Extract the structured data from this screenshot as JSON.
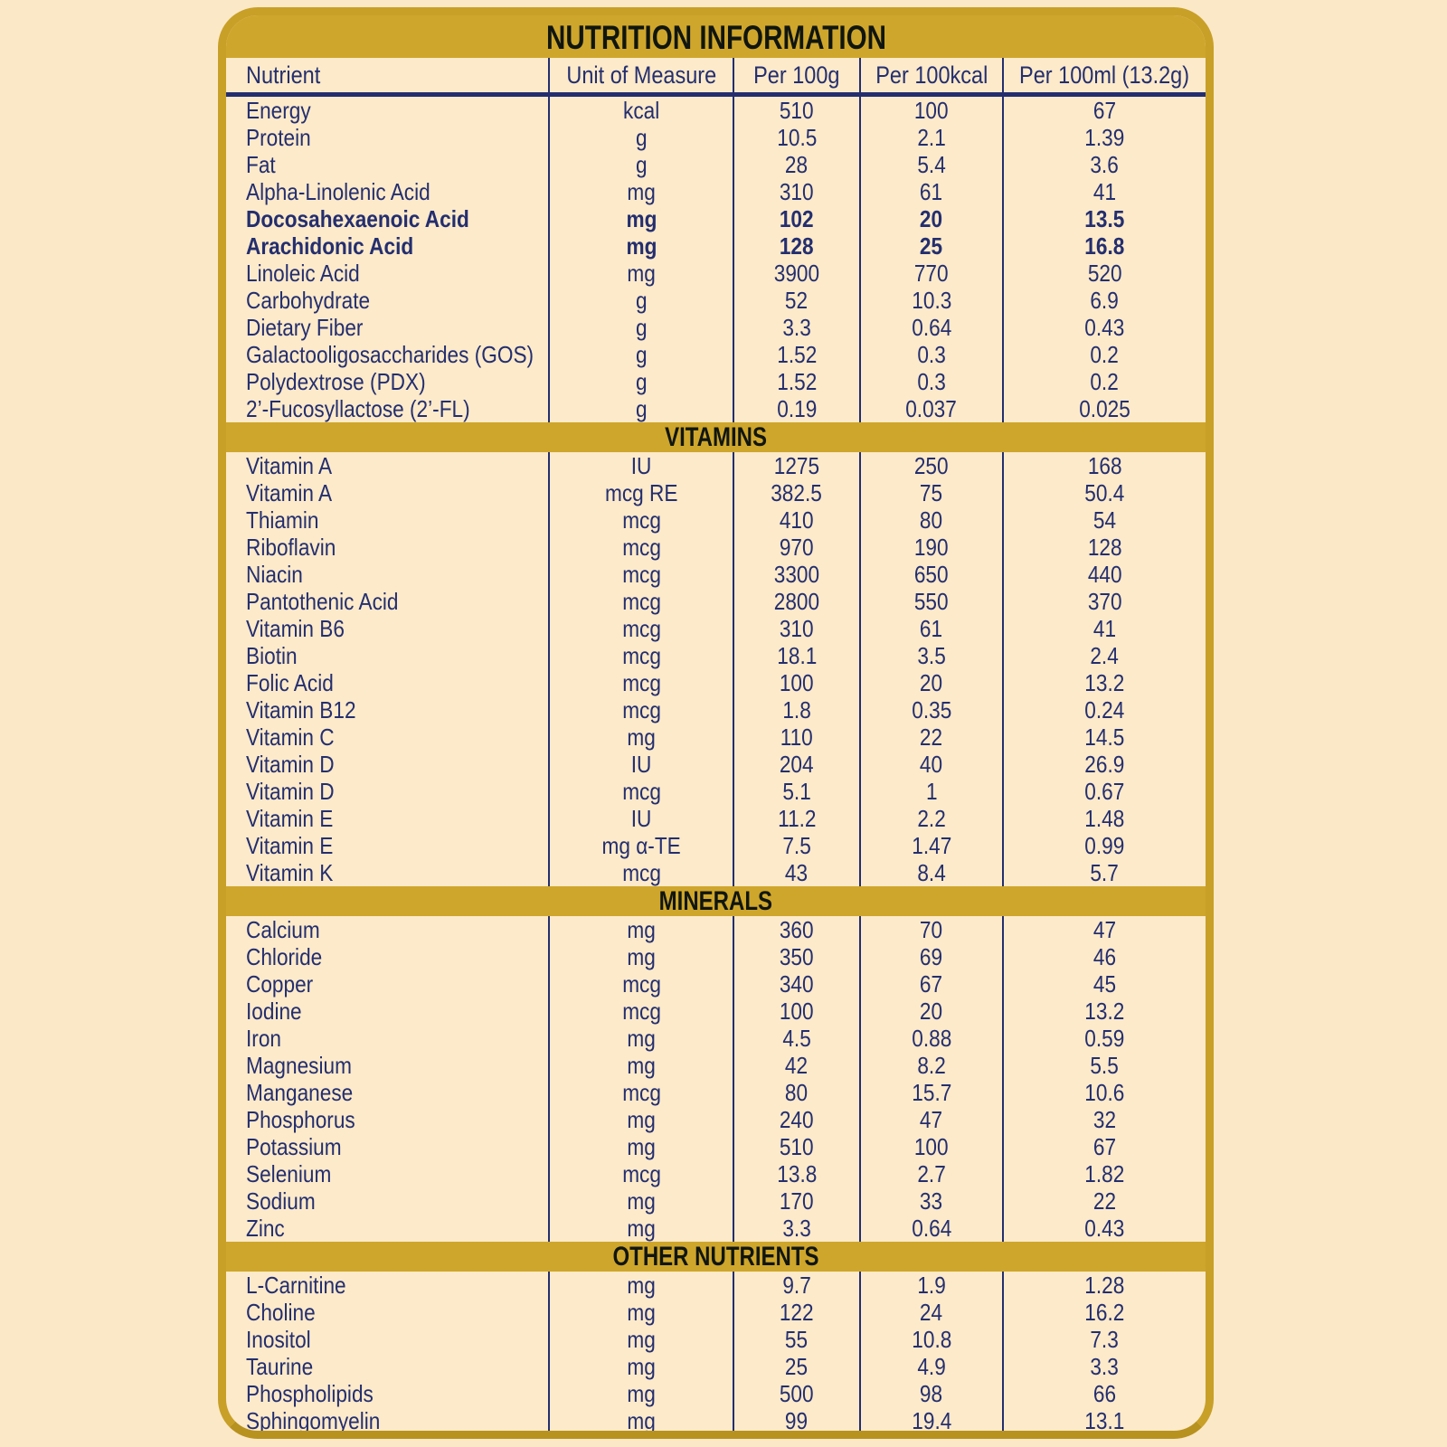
{
  "title": "NUTRITION INFORMATION",
  "columns": [
    "Nutrient",
    "Unit of Measure",
    "Per 100g",
    "Per 100kcal",
    "Per 100ml (13.2g)"
  ],
  "colors": {
    "gold_band": "#CFA62C",
    "gold_border": "#C8A028",
    "cream_background": "#FBE8C7",
    "card_background": "#FCEACA",
    "navy_text": "#242E6F",
    "heading_text": "#10160F"
  },
  "sections": [
    {
      "header": null,
      "rows": [
        {
          "nutrient": "Energy",
          "unit": "kcal",
          "per_100g": "510",
          "per_100kcal": "100",
          "per_100ml": "67",
          "bold": false
        },
        {
          "nutrient": "Protein",
          "unit": "g",
          "per_100g": "10.5",
          "per_100kcal": "2.1",
          "per_100ml": "1.39",
          "bold": false
        },
        {
          "nutrient": "Fat",
          "unit": "g",
          "per_100g": "28",
          "per_100kcal": "5.4",
          "per_100ml": "3.6",
          "bold": false
        },
        {
          "nutrient": "Alpha-Linolenic Acid",
          "unit": "mg",
          "per_100g": "310",
          "per_100kcal": "61",
          "per_100ml": "41",
          "bold": false
        },
        {
          "nutrient": "Docosahexaenoic Acid",
          "unit": "mg",
          "per_100g": "102",
          "per_100kcal": "20",
          "per_100ml": "13.5",
          "bold": true
        },
        {
          "nutrient": "Arachidonic Acid",
          "unit": "mg",
          "per_100g": "128",
          "per_100kcal": "25",
          "per_100ml": "16.8",
          "bold": true
        },
        {
          "nutrient": "Linoleic Acid",
          "unit": "mg",
          "per_100g": "3900",
          "per_100kcal": "770",
          "per_100ml": "520",
          "bold": false
        },
        {
          "nutrient": "Carbohydrate",
          "unit": "g",
          "per_100g": "52",
          "per_100kcal": "10.3",
          "per_100ml": "6.9",
          "bold": false
        },
        {
          "nutrient": "Dietary Fiber",
          "unit": "g",
          "per_100g": "3.3",
          "per_100kcal": "0.64",
          "per_100ml": "0.43",
          "bold": false
        },
        {
          "nutrient": "Galactooligosaccharides (GOS)",
          "unit": "g",
          "per_100g": "1.52",
          "per_100kcal": "0.3",
          "per_100ml": "0.2",
          "bold": false
        },
        {
          "nutrient": "Polydextrose (PDX)",
          "unit": "g",
          "per_100g": "1.52",
          "per_100kcal": "0.3",
          "per_100ml": "0.2",
          "bold": false
        },
        {
          "nutrient": "2’-Fucosyllactose (2’-FL)",
          "unit": "g",
          "per_100g": "0.19",
          "per_100kcal": "0.037",
          "per_100ml": "0.025",
          "bold": false
        }
      ]
    },
    {
      "header": "VITAMINS",
      "rows": [
        {
          "nutrient": "Vitamin A",
          "unit": "IU",
          "per_100g": "1275",
          "per_100kcal": "250",
          "per_100ml": "168",
          "bold": false
        },
        {
          "nutrient": "Vitamin A",
          "unit": "mcg RE",
          "per_100g": "382.5",
          "per_100kcal": "75",
          "per_100ml": "50.4",
          "bold": false
        },
        {
          "nutrient": "Thiamin",
          "unit": "mcg",
          "per_100g": "410",
          "per_100kcal": "80",
          "per_100ml": "54",
          "bold": false
        },
        {
          "nutrient": "Riboflavin",
          "unit": "mcg",
          "per_100g": "970",
          "per_100kcal": "190",
          "per_100ml": "128",
          "bold": false
        },
        {
          "nutrient": "Niacin",
          "unit": "mcg",
          "per_100g": "3300",
          "per_100kcal": "650",
          "per_100ml": "440",
          "bold": false
        },
        {
          "nutrient": "Pantothenic Acid",
          "unit": "mcg",
          "per_100g": "2800",
          "per_100kcal": "550",
          "per_100ml": "370",
          "bold": false
        },
        {
          "nutrient": "Vitamin B6",
          "unit": "mcg",
          "per_100g": "310",
          "per_100kcal": "61",
          "per_100ml": "41",
          "bold": false
        },
        {
          "nutrient": "Biotin",
          "unit": "mcg",
          "per_100g": "18.1",
          "per_100kcal": "3.5",
          "per_100ml": "2.4",
          "bold": false
        },
        {
          "nutrient": "Folic Acid",
          "unit": "mcg",
          "per_100g": "100",
          "per_100kcal": "20",
          "per_100ml": "13.2",
          "bold": false
        },
        {
          "nutrient": "Vitamin B12",
          "unit": "mcg",
          "per_100g": "1.8",
          "per_100kcal": "0.35",
          "per_100ml": "0.24",
          "bold": false
        },
        {
          "nutrient": "Vitamin C",
          "unit": "mg",
          "per_100g": "110",
          "per_100kcal": "22",
          "per_100ml": "14.5",
          "bold": false
        },
        {
          "nutrient": "Vitamin D",
          "unit": "IU",
          "per_100g": "204",
          "per_100kcal": "40",
          "per_100ml": "26.9",
          "bold": false
        },
        {
          "nutrient": "Vitamin D",
          "unit": "mcg",
          "per_100g": "5.1",
          "per_100kcal": "1",
          "per_100ml": "0.67",
          "bold": false
        },
        {
          "nutrient": "Vitamin E",
          "unit": "IU",
          "per_100g": "11.2",
          "per_100kcal": "2.2",
          "per_100ml": "1.48",
          "bold": false
        },
        {
          "nutrient": "Vitamin E",
          "unit": "mg α-TE",
          "per_100g": "7.5",
          "per_100kcal": "1.47",
          "per_100ml": "0.99",
          "bold": false
        },
        {
          "nutrient": "Vitamin K",
          "unit": "mcg",
          "per_100g": "43",
          "per_100kcal": "8.4",
          "per_100ml": "5.7",
          "bold": false
        }
      ]
    },
    {
      "header": "MINERALS",
      "rows": [
        {
          "nutrient": "Calcium",
          "unit": "mg",
          "per_100g": "360",
          "per_100kcal": "70",
          "per_100ml": "47",
          "bold": false
        },
        {
          "nutrient": "Chloride",
          "unit": "mg",
          "per_100g": "350",
          "per_100kcal": "69",
          "per_100ml": "46",
          "bold": false
        },
        {
          "nutrient": "Copper",
          "unit": "mcg",
          "per_100g": "340",
          "per_100kcal": "67",
          "per_100ml": "45",
          "bold": false
        },
        {
          "nutrient": "Iodine",
          "unit": "mcg",
          "per_100g": "100",
          "per_100kcal": "20",
          "per_100ml": "13.2",
          "bold": false
        },
        {
          "nutrient": "Iron",
          "unit": "mg",
          "per_100g": "4.5",
          "per_100kcal": "0.88",
          "per_100ml": "0.59",
          "bold": false
        },
        {
          "nutrient": "Magnesium",
          "unit": "mg",
          "per_100g": "42",
          "per_100kcal": "8.2",
          "per_100ml": "5.5",
          "bold": false
        },
        {
          "nutrient": "Manganese",
          "unit": "mcg",
          "per_100g": "80",
          "per_100kcal": "15.7",
          "per_100ml": "10.6",
          "bold": false
        },
        {
          "nutrient": "Phosphorus",
          "unit": "mg",
          "per_100g": "240",
          "per_100kcal": "47",
          "per_100ml": "32",
          "bold": false
        },
        {
          "nutrient": "Potassium",
          "unit": "mg",
          "per_100g": "510",
          "per_100kcal": "100",
          "per_100ml": "67",
          "bold": false
        },
        {
          "nutrient": "Selenium",
          "unit": "mcg",
          "per_100g": "13.8",
          "per_100kcal": "2.7",
          "per_100ml": "1.82",
          "bold": false
        },
        {
          "nutrient": "Sodium",
          "unit": "mg",
          "per_100g": "170",
          "per_100kcal": "33",
          "per_100ml": "22",
          "bold": false
        },
        {
          "nutrient": "Zinc",
          "unit": "mg",
          "per_100g": "3.3",
          "per_100kcal": "0.64",
          "per_100ml": "0.43",
          "bold": false
        }
      ]
    },
    {
      "header": "OTHER NUTRIENTS",
      "rows": [
        {
          "nutrient": "L-Carnitine",
          "unit": "mg",
          "per_100g": "9.7",
          "per_100kcal": "1.9",
          "per_100ml": "1.28",
          "bold": false
        },
        {
          "nutrient": "Choline",
          "unit": "mg",
          "per_100g": "122",
          "per_100kcal": "24",
          "per_100ml": "16.2",
          "bold": false
        },
        {
          "nutrient": "Inositol",
          "unit": "mg",
          "per_100g": "55",
          "per_100kcal": "10.8",
          "per_100ml": "7.3",
          "bold": false
        },
        {
          "nutrient": "Taurine",
          "unit": "mg",
          "per_100g": "25",
          "per_100kcal": "4.9",
          "per_100ml": "3.3",
          "bold": false
        },
        {
          "nutrient": "Phospholipids",
          "unit": "mg",
          "per_100g": "500",
          "per_100kcal": "98",
          "per_100ml": "66",
          "bold": false
        },
        {
          "nutrient": "Sphingomyelin",
          "unit": "mg",
          "per_100g": "99",
          "per_100kcal": "19.4",
          "per_100ml": "13.1",
          "bold": false
        }
      ]
    }
  ]
}
